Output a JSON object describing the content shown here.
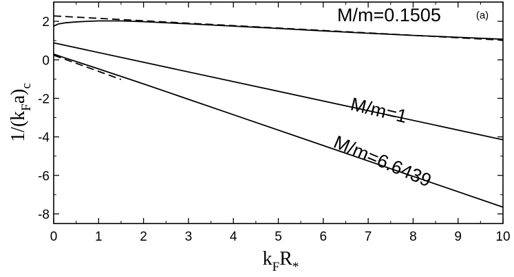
{
  "chart_data": {
    "type": "line",
    "panel_label": "(a)",
    "xlabel": {
      "base": "k",
      "sub1": "F",
      "mid": "R",
      "sub2": "*"
    },
    "ylabel": {
      "pre": "1/(k",
      "sub1": "F",
      "mid": "a)",
      "sub2": "c"
    },
    "xlim": [
      0,
      10
    ],
    "ylim": [
      -8.5,
      3.0
    ],
    "xticks": [
      0,
      1,
      2,
      3,
      4,
      5,
      6,
      7,
      8,
      9,
      10
    ],
    "yticks": [
      -8,
      -6,
      -4,
      -2,
      0,
      2
    ],
    "grid": false,
    "series": [
      {
        "name": "M/m=0.1505",
        "style": "solid",
        "x": [
          0,
          0.1,
          0.25,
          0.5,
          0.75,
          1.0,
          1.5,
          2.0,
          3.0,
          4.0,
          5.0,
          6.0,
          7.0,
          8.0,
          9.0,
          10.0
        ],
        "y": [
          1.75,
          1.86,
          1.92,
          1.97,
          2.0,
          2.02,
          2.02,
          1.98,
          1.87,
          1.75,
          1.63,
          1.5,
          1.38,
          1.27,
          1.17,
          1.07
        ]
      },
      {
        "name": "",
        "style": "dashed",
        "x": [
          0,
          10
        ],
        "y": [
          2.28,
          1.02
        ]
      },
      {
        "name": "M/m=1",
        "style": "solid",
        "x": [
          0,
          10
        ],
        "y": [
          0.88,
          -4.15
        ]
      },
      {
        "name": "M/m=6.6439",
        "style": "solid",
        "x": [
          0,
          0.25,
          0.5,
          1.0,
          2.0,
          4.0,
          6.0,
          8.0,
          10.0
        ],
        "y": [
          0.3,
          0.1,
          -0.09,
          -0.47,
          -1.25,
          -2.85,
          -4.45,
          -6.05,
          -7.65
        ]
      },
      {
        "name": "",
        "style": "dashed",
        "x": [
          0,
          1.5
        ],
        "y": [
          0.24,
          -1.02
        ]
      }
    ],
    "annotations": [
      {
        "text": "M/m=0.1505"
      },
      {
        "text": "M/m=1"
      },
      {
        "text": "M/m=6.6439"
      }
    ]
  }
}
